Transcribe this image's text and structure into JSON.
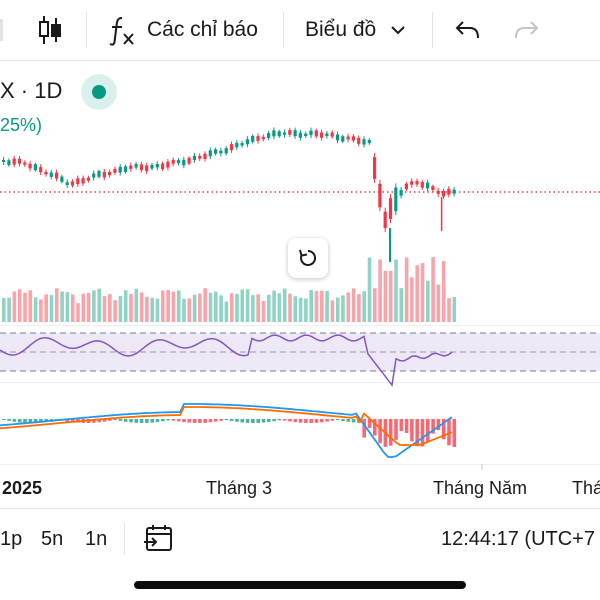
{
  "toolbar": {
    "indicators_label": "Các chỉ báo",
    "chart_type_label": "Biểu đồ"
  },
  "legend": {
    "symbol_label": "X · 1D",
    "change_pct": "25%)"
  },
  "x_axis": {
    "labels": [
      "2025",
      "Tháng 3",
      "Tháng Năm",
      "Thá"
    ]
  },
  "bottom_bar": {
    "ranges": [
      "1p",
      "5n",
      "1n"
    ],
    "clock": "12:44:17 (UTC+7"
  },
  "colors": {
    "up": "#089981",
    "down": "#f23645",
    "volume_up": "#8fd3c5",
    "volume_down": "#f7a4aa",
    "rsi_line": "#7e57c2",
    "macd_line": "#2196f3",
    "signal_line": "#ff6d00",
    "price_line": "#f23645"
  },
  "icons": {
    "candles": "candlestick-icon",
    "fx": "fx-icon",
    "chevron": "chevron-down-icon",
    "undo": "undo-icon",
    "redo": "redo-icon",
    "reset": "reset-icon",
    "calendar": "calendar-range-icon"
  }
}
